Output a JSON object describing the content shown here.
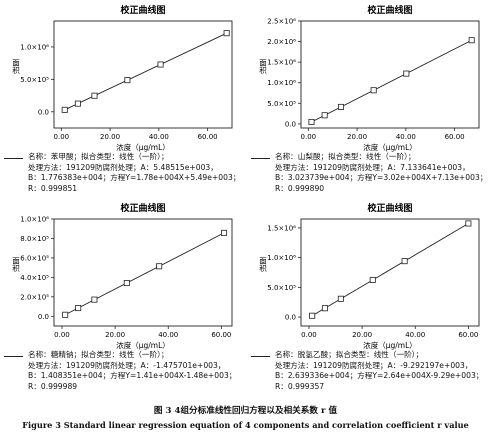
{
  "figure": {
    "caption_cn": "图 3 4组分标准线性回归方程以及相关系数 r 值",
    "caption_en": "Figure 3 Standard linear regression equation of 4 components and correlation coefficient r value"
  },
  "chart_data": [
    {
      "type": "line",
      "title": "校正曲线图",
      "xlabel": "浓度（μg/mL）",
      "ylabel": "面积",
      "xlim": [
        -3,
        70
      ],
      "ylim": [
        -250000,
        1400000
      ],
      "xticks": [
        0,
        20,
        40,
        60
      ],
      "xtick_labels": [
        "0.00",
        "20.00",
        "40.00",
        "60.00"
      ],
      "yticks": [
        0,
        500000,
        1000000
      ],
      "ytick_labels": [
        "0.0",
        "5.0×10⁵",
        "1.0×10⁶"
      ],
      "x": [
        1.4,
        6.8,
        13.6,
        27.1,
        40.7,
        67.8
      ],
      "y": [
        30300,
        126000,
        248000,
        488000,
        729000,
        1212000
      ],
      "info": {
        "line1": "名称：苯甲酸；拟合类型：线性（一阶）；",
        "line2": "处理方法：191209防腐剂处理；A：5.48515e+003，",
        "line3": "B：1.776383e+004；方程Y=1.78e+004X+5.49e+003；",
        "line4": "R：0.999851"
      }
    },
    {
      "type": "line",
      "title": "校正曲线图",
      "xlabel": "浓度（μg/mL）",
      "ylabel": "面积",
      "xlim": [
        -3,
        70
      ],
      "ylim": [
        -100000,
        2500000
      ],
      "xticks": [
        0,
        20,
        40,
        60
      ],
      "xtick_labels": [
        "0.00",
        "20.00",
        "40.00",
        "60.00"
      ],
      "yticks": [
        0,
        500000,
        1000000,
        1500000,
        2000000,
        2500000
      ],
      "ytick_labels": [
        "0.0",
        "5.0×10⁵",
        "1.0×10⁶",
        "1.5×10⁶",
        "2.0×10⁶",
        "2.5×10⁶"
      ],
      "x": [
        1.3,
        6.7,
        13.4,
        26.8,
        40.2,
        67.0
      ],
      "y": [
        46400,
        209000,
        412000,
        817000,
        1222000,
        2033000
      ],
      "info": {
        "line1": "名称：山梨酸；拟合类型：线性（一阶）；",
        "line2": "处理方法：191209防腐剂处理；A：7.133641e+003，",
        "line3": "B：3.023739e+004；方程Y=3.02e+004X+7.13e+003；",
        "line4": "R：0.999890"
      }
    },
    {
      "type": "line",
      "title": "校正曲线图",
      "xlabel": "浓度（μg/mL）",
      "ylabel": "面积",
      "xlim": [
        -3,
        64
      ],
      "ylim": [
        -100000,
        1000000
      ],
      "xticks": [
        0,
        20,
        40,
        60
      ],
      "xtick_labels": [
        "0.00",
        "20.00",
        "40.00",
        "60.00"
      ],
      "yticks": [
        0,
        200000,
        400000,
        600000,
        800000,
        1000000
      ],
      "ytick_labels": [
        "0.0",
        "2.0×10⁵",
        "4.0×10⁵",
        "6.0×10⁵",
        "8.0×10⁵",
        "1.0×10⁶"
      ],
      "x": [
        1.2,
        6.1,
        12.2,
        24.4,
        36.6,
        61.0
      ],
      "y": [
        15400,
        84500,
        171000,
        342000,
        514000,
        857000
      ],
      "info": {
        "line1": "名称：糖精钠；拟合类型：线性（一阶）；",
        "line2": "处理方法：191209防腐剂处理；A：-1.475701e+003，",
        "line3": "B：1.408351e+004；方程Y=1.41e+004X-1.48e+003；",
        "line4": "R：0.999989"
      }
    },
    {
      "type": "line",
      "title": "校正曲线图",
      "xlabel": "浓度（μg/mL）",
      "ylabel": "面积",
      "xlim": [
        -3,
        64
      ],
      "ylim": [
        -150000,
        1650000
      ],
      "xticks": [
        0,
        20,
        40,
        60
      ],
      "xtick_labels": [
        "0.00",
        "20.00",
        "40.00",
        "60.00"
      ],
      "yticks": [
        0,
        500000,
        1000000,
        1500000
      ],
      "ytick_labels": [
        "0.0",
        "5.0×10⁵",
        "1.0×10⁶",
        "1.5×10⁶"
      ],
      "x": [
        1.2,
        6.0,
        12.0,
        24.0,
        36.0,
        60.0
      ],
      "y": [
        22400,
        149000,
        308000,
        625000,
        941000,
        1575000
      ],
      "info": {
        "line1": "名称：脱氢乙酸；拟合类型：线性（一阶）；",
        "line2": "处理方法：191209防腐剂处理；A：-9.292197e+003，",
        "line3": "B：2.639336e+004；方程Y=2.64e+004X-9.29e+003；",
        "line4": "R：0.999357"
      }
    }
  ]
}
